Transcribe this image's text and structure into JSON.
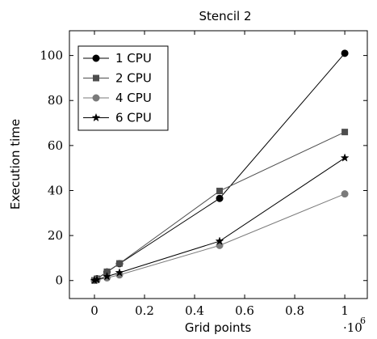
{
  "chart_data": {
    "type": "line",
    "title": "Stencil 2",
    "xlabel": "Grid points",
    "ylabel": "Execution time",
    "x_scale_label": "·10",
    "x_scale_exponent": "6",
    "xlim": [
      -0.1,
      1.09
    ],
    "ylim": [
      -8,
      111
    ],
    "x_ticks": [
      0,
      0.2,
      0.4,
      0.6,
      0.8,
      1
    ],
    "x_tick_labels": [
      "0",
      "0.2",
      "0.4",
      "0.6",
      "0.8",
      "1"
    ],
    "y_ticks": [
      0,
      20,
      40,
      60,
      80,
      100
    ],
    "y_tick_labels": [
      "0",
      "20",
      "40",
      "60",
      "80",
      "100"
    ],
    "legend_position": "top-left",
    "grid": false,
    "series": [
      {
        "name": "1 CPU",
        "marker": "circle",
        "color": "#000000",
        "x": [
          0,
          0.01,
          0.05,
          0.1,
          0.5,
          1
        ],
        "y": [
          0.1,
          0.8,
          3.8,
          7.5,
          36.5,
          101
        ]
      },
      {
        "name": "2 CPU",
        "marker": "square",
        "color": "#4d4d4d",
        "x": [
          0,
          0.01,
          0.05,
          0.1,
          0.5,
          1
        ],
        "y": [
          0.1,
          0.8,
          3.9,
          7.6,
          39.8,
          66
        ]
      },
      {
        "name": "4 CPU",
        "marker": "circle",
        "color": "#7a7a7a",
        "x": [
          0,
          0.01,
          0.05,
          0.1,
          0.5,
          1
        ],
        "y": [
          0.05,
          0.3,
          1.2,
          2.5,
          15.6,
          38.5
        ]
      },
      {
        "name": "6 CPU",
        "marker": "star",
        "color": "#000000",
        "x": [
          0,
          0.01,
          0.05,
          0.1,
          0.5,
          1
        ],
        "y": [
          0.05,
          0.4,
          1.8,
          3.5,
          17.5,
          54.5
        ]
      }
    ]
  }
}
